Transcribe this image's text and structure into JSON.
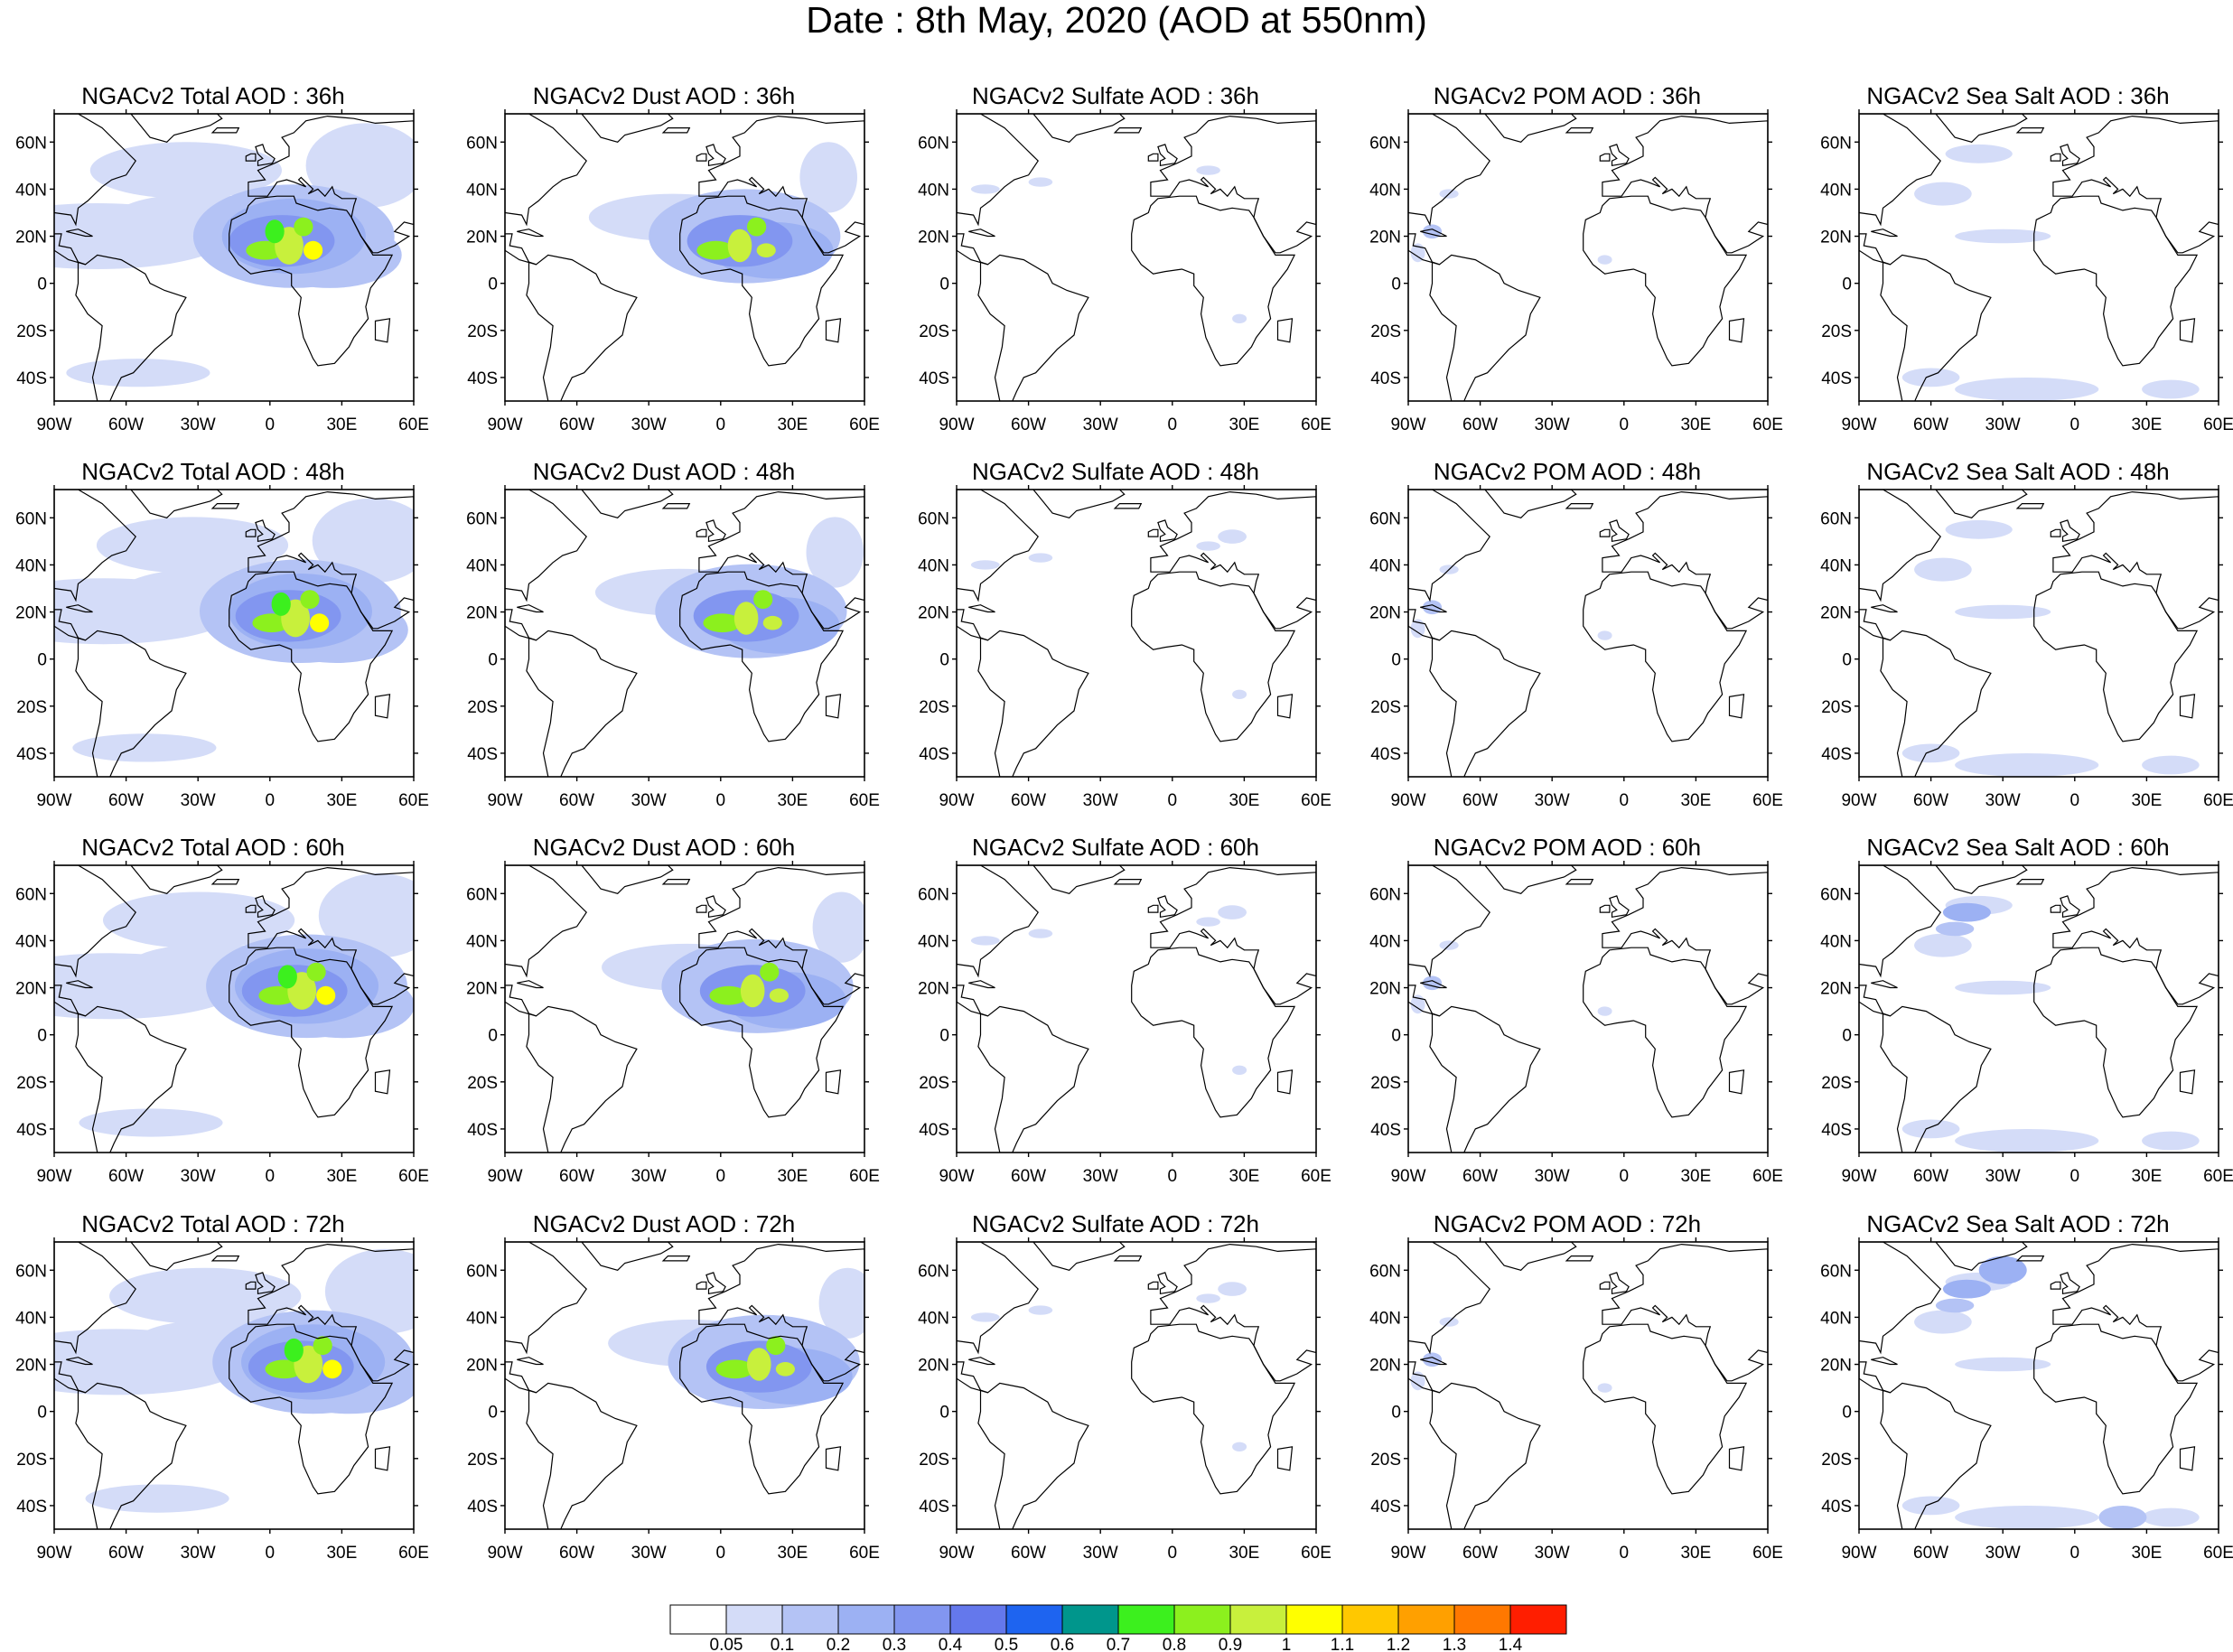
{
  "title": "Date : 8th May, 2020 (AOD at 550nm)",
  "panels": [
    {
      "title": "NGACv2 Total AOD : 36h",
      "species": "total",
      "hour": "36h"
    },
    {
      "title": "NGACv2 Dust AOD : 36h",
      "species": "dust",
      "hour": "36h"
    },
    {
      "title": "NGACv2 Sulfate AOD : 36h",
      "species": "sulfate",
      "hour": "36h"
    },
    {
      "title": "NGACv2 POM AOD : 36h",
      "species": "pom",
      "hour": "36h"
    },
    {
      "title": "NGACv2 Sea Salt AOD : 36h",
      "species": "seasalt",
      "hour": "36h"
    },
    {
      "title": "NGACv2 Total AOD : 48h",
      "species": "total",
      "hour": "48h"
    },
    {
      "title": "NGACv2 Dust AOD : 48h",
      "species": "dust",
      "hour": "48h"
    },
    {
      "title": "NGACv2 Sulfate AOD : 48h",
      "species": "sulfate",
      "hour": "48h"
    },
    {
      "title": "NGACv2 POM AOD : 48h",
      "species": "pom",
      "hour": "48h"
    },
    {
      "title": "NGACv2 Sea Salt AOD : 48h",
      "species": "seasalt",
      "hour": "48h"
    },
    {
      "title": "NGACv2 Total AOD : 60h",
      "species": "total",
      "hour": "60h"
    },
    {
      "title": "NGACv2 Dust AOD : 60h",
      "species": "dust",
      "hour": "60h"
    },
    {
      "title": "NGACv2 Sulfate AOD : 60h",
      "species": "sulfate",
      "hour": "60h"
    },
    {
      "title": "NGACv2 POM AOD : 60h",
      "species": "pom",
      "hour": "60h"
    },
    {
      "title": "NGACv2 Sea Salt AOD : 60h",
      "species": "seasalt",
      "hour": "60h"
    },
    {
      "title": "NGACv2 Total AOD : 72h",
      "species": "total",
      "hour": "72h"
    },
    {
      "title": "NGACv2 Dust AOD : 72h",
      "species": "dust",
      "hour": "72h"
    },
    {
      "title": "NGACv2 Sulfate AOD : 72h",
      "species": "sulfate",
      "hour": "72h"
    },
    {
      "title": "NGACv2 POM AOD : 72h",
      "species": "pom",
      "hour": "72h"
    },
    {
      "title": "NGACv2 Sea Salt  AOD : 72h",
      "species": "seasalt",
      "hour": "72h"
    }
  ],
  "lat_ticks": [
    "60N",
    "40N",
    "20N",
    "0",
    "20S",
    "40S"
  ],
  "lon_ticks": [
    "90W",
    "60W",
    "30W",
    "0",
    "30E",
    "60E"
  ],
  "colorbar": {
    "colors": [
      "#ffffff",
      "#d4dcf8",
      "#b4c3f5",
      "#9cb1f3",
      "#8296f0",
      "#6478ec",
      "#1e64f0",
      "#00968c",
      "#3cf01e",
      "#8cf01e",
      "#c8f03c",
      "#ffff00",
      "#ffc800",
      "#ffa000",
      "#ff7800",
      "#ff1e00"
    ],
    "labels": [
      "0.05",
      "0.1",
      "0.2",
      "0.3",
      "0.4",
      "0.5",
      "0.6",
      "0.7",
      "0.8",
      "0.9",
      "1",
      "1.1",
      "1.2",
      "1.3",
      "1.4"
    ]
  }
}
